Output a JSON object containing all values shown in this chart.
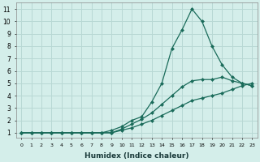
{
  "xlabel": "Humidex (Indice chaleur)",
  "bg_color": "#d4eeea",
  "grid_color": "#b8d8d4",
  "line_color": "#1a6b5a",
  "xlim": [
    -0.5,
    23.5
  ],
  "ylim": [
    0.6,
    11.5
  ],
  "xticks": [
    0,
    1,
    2,
    3,
    4,
    5,
    6,
    7,
    8,
    9,
    10,
    11,
    12,
    13,
    14,
    15,
    16,
    17,
    18,
    19,
    20,
    21,
    22,
    23
  ],
  "yticks": [
    1,
    2,
    3,
    4,
    5,
    6,
    7,
    8,
    9,
    10,
    11
  ],
  "line1_x": [
    0,
    1,
    2,
    3,
    4,
    5,
    6,
    7,
    8,
    9,
    10,
    11,
    12,
    13,
    14,
    15,
    16,
    17,
    18,
    19,
    20,
    21,
    22,
    23
  ],
  "line1_y": [
    1.0,
    1.0,
    1.0,
    1.0,
    1.0,
    1.0,
    1.0,
    1.0,
    1.0,
    1.0,
    1.2,
    1.4,
    1.7,
    2.0,
    2.4,
    2.8,
    3.2,
    3.6,
    3.8,
    4.0,
    4.2,
    4.5,
    4.8,
    5.0
  ],
  "line2_x": [
    0,
    1,
    2,
    3,
    4,
    5,
    6,
    7,
    8,
    9,
    10,
    11,
    12,
    13,
    14,
    15,
    16,
    17,
    18,
    19,
    20,
    21,
    22,
    23
  ],
  "line2_y": [
    1.0,
    1.0,
    1.0,
    1.0,
    1.0,
    1.0,
    1.0,
    1.0,
    1.0,
    1.0,
    1.3,
    1.7,
    2.1,
    2.6,
    3.3,
    4.0,
    4.7,
    5.2,
    5.3,
    5.3,
    5.5,
    5.2,
    5.0,
    4.8
  ],
  "line3_x": [
    0,
    1,
    2,
    3,
    4,
    5,
    6,
    7,
    8,
    9,
    10,
    11,
    12,
    13,
    14,
    15,
    16,
    17,
    18,
    19,
    20,
    21,
    22,
    23
  ],
  "line3_y": [
    1.0,
    1.0,
    1.0,
    1.0,
    1.0,
    1.0,
    1.0,
    1.0,
    1.0,
    1.2,
    1.5,
    2.0,
    2.3,
    3.5,
    5.0,
    7.8,
    9.3,
    11.0,
    10.0,
    8.0,
    6.5,
    5.5,
    5.0,
    4.8
  ]
}
